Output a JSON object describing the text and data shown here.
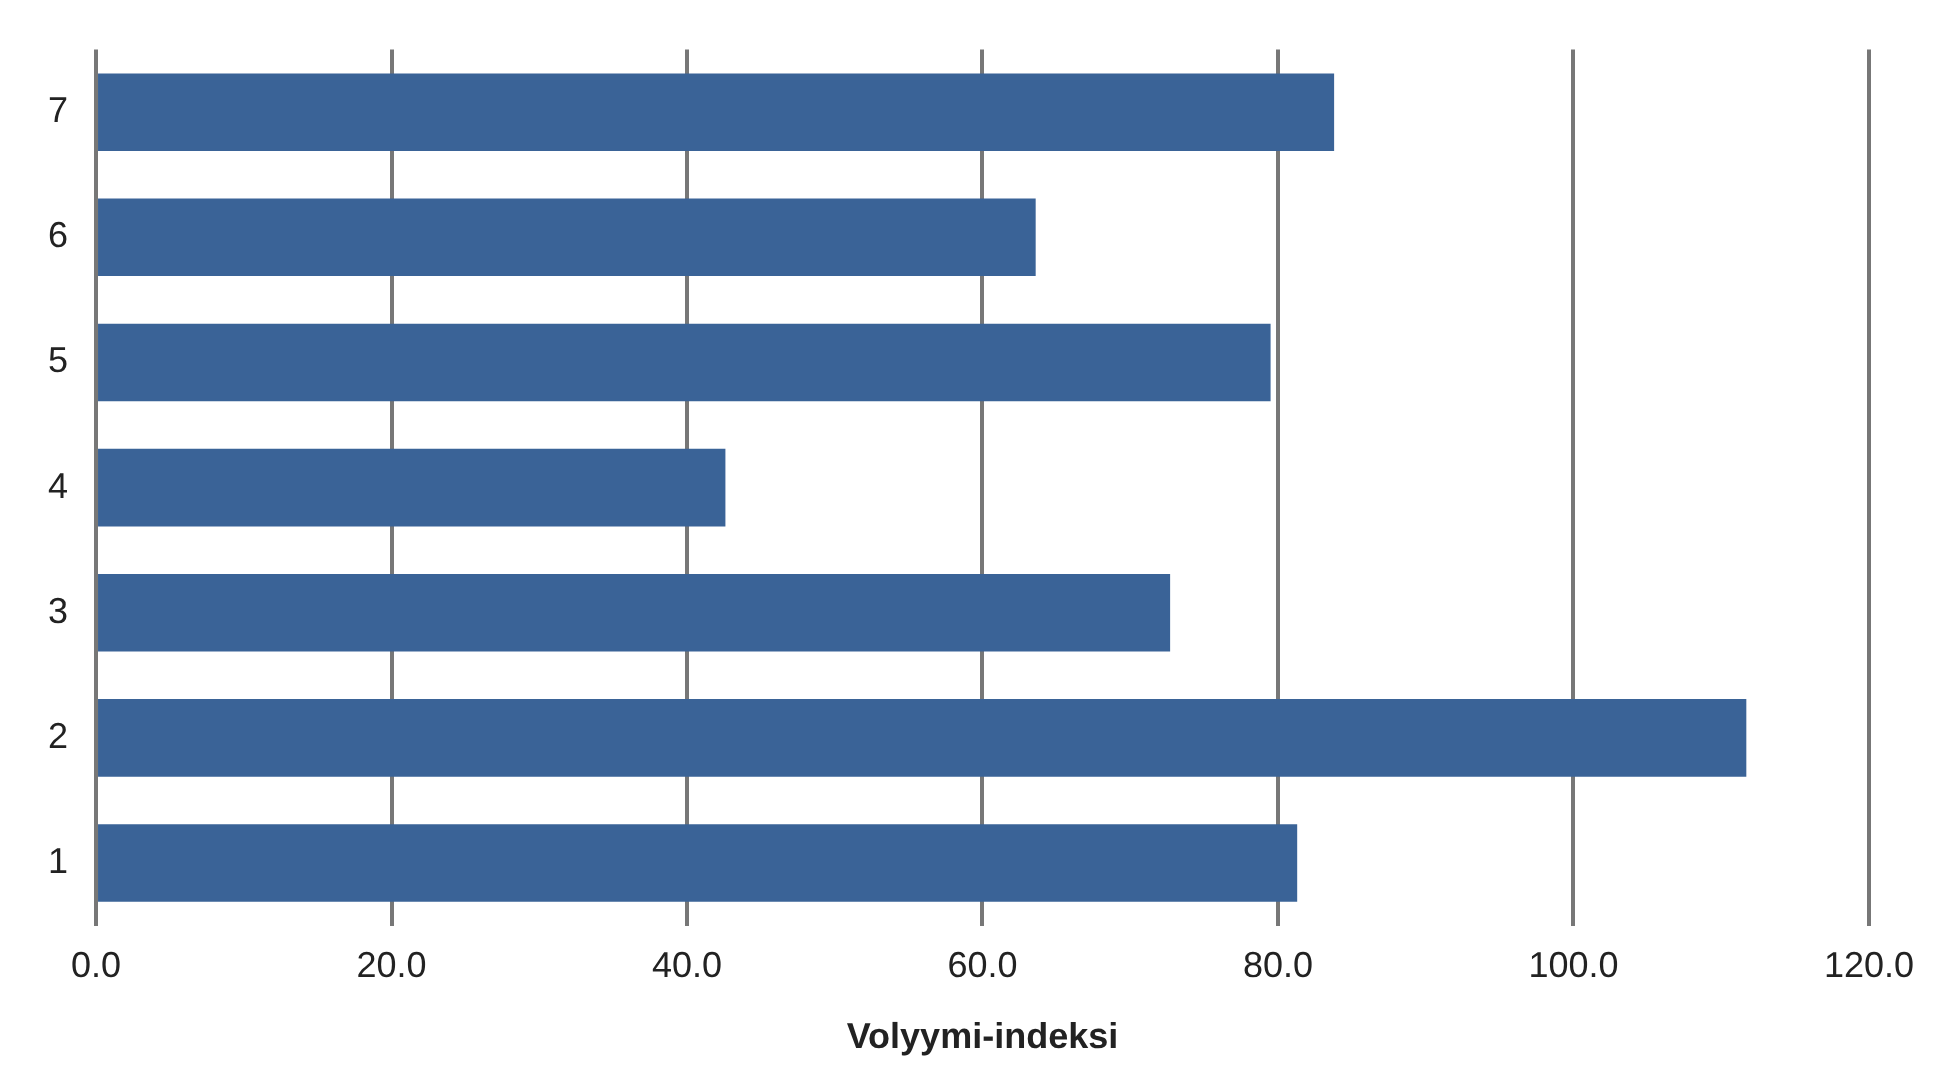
{
  "chart_data": {
    "type": "bar",
    "orientation": "horizontal",
    "xlabel": "Volyymi-indeksi",
    "categories": [
      "7",
      "6",
      "5",
      "4",
      "3",
      "2",
      "1"
    ],
    "values": [
      83.8,
      63.6,
      79.5,
      42.6,
      72.7,
      111.7,
      81.3
    ],
    "color": "#3a6397",
    "xlim": [
      0,
      120
    ],
    "xticks": [
      {
        "value": 0,
        "label": "0.0"
      },
      {
        "value": 20,
        "label": "20.0"
      },
      {
        "value": 40,
        "label": "40.0"
      },
      {
        "value": 60,
        "label": "60.0"
      },
      {
        "value": 80,
        "label": "80.0"
      },
      {
        "value": 100,
        "label": "100.0"
      },
      {
        "value": 120,
        "label": "120.0"
      }
    ],
    "grid": "x",
    "legend": false
  }
}
